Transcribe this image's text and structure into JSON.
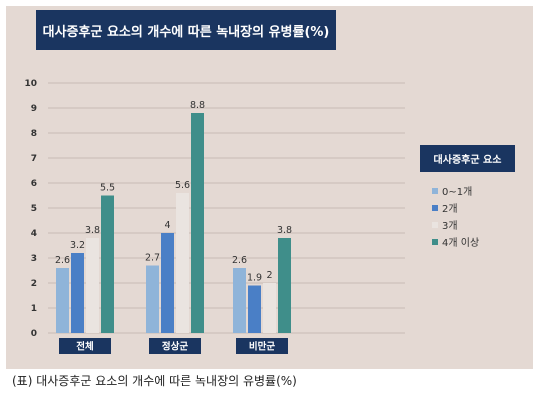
{
  "caption": "(표) 대사증후군 요소의 개수에 따른 녹내장의 유병률(%)",
  "chart_data": {
    "type": "bar",
    "title": "대사증후군 요소의 개수에 따른 녹내장의 유병률(%)",
    "categories": [
      "전체",
      "정상군",
      "비만군"
    ],
    "y_ticks": [
      "0",
      "1",
      "2",
      "3",
      "4",
      "5",
      "6",
      "7",
      "8",
      "9",
      "10"
    ],
    "ylim": [
      0,
      10
    ],
    "grid": true,
    "legend_title": "대사증후군 요소",
    "legend_position": "right",
    "series": [
      {
        "name": "0~1개",
        "color": "#8fb4d9",
        "values": [
          2.6,
          2.7,
          2.6
        ],
        "labels": [
          "2.6",
          "2.7",
          "2.6"
        ]
      },
      {
        "name": "2개",
        "color": "#4a7fc6",
        "values": [
          3.2,
          4.0,
          1.9
        ],
        "labels": [
          "3.2",
          "4",
          "1.9"
        ]
      },
      {
        "name": "3개",
        "color": "#eae4e0",
        "values": [
          3.8,
          5.6,
          2.0
        ],
        "labels": [
          "3.8",
          "5.6",
          "2"
        ]
      },
      {
        "name": "4개 이상",
        "color": "#3f8e8a",
        "values": [
          5.5,
          8.8,
          3.8
        ],
        "labels": [
          "5.5",
          "8.8",
          "3.8"
        ]
      }
    ]
  }
}
